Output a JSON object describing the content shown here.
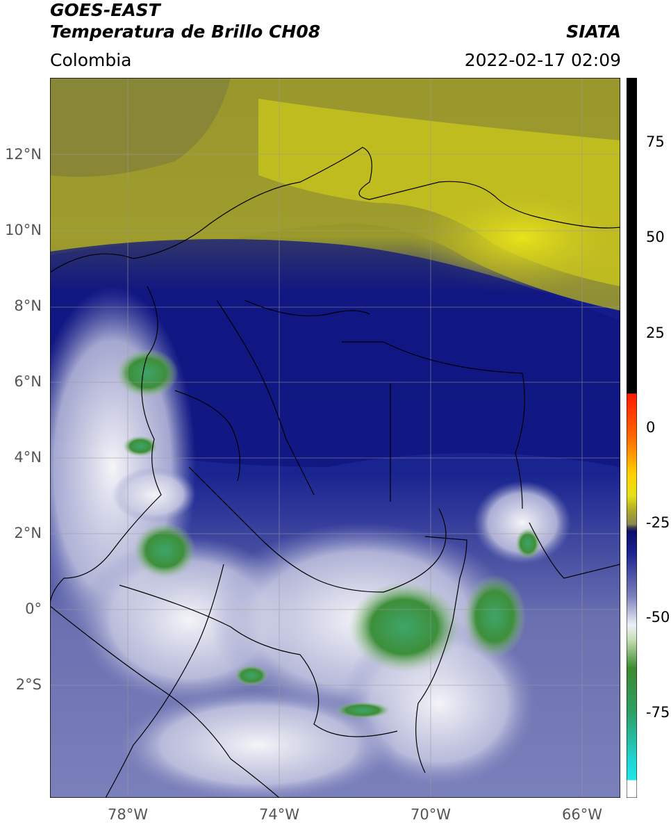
{
  "header": {
    "satellite": "GOES-EAST",
    "product": "Temperatura de Brillo CH08",
    "region": "Colombia",
    "agency": "SIATA",
    "datetime": "2022-02-17 02:09"
  },
  "map": {
    "lat_labels": [
      "12°N",
      "10°N",
      "8°N",
      "6°N",
      "4°N",
      "2°N",
      "0°",
      "2°S"
    ],
    "lon_labels": [
      "78°W",
      "74°W",
      "70°W",
      "66°W"
    ]
  },
  "colorbar": {
    "tick_labels": [
      "75",
      "50",
      "25",
      "0",
      "-25",
      "-50",
      "-75"
    ],
    "colors": {
      "top": "#000000",
      "warm": "#ff2a00",
      "yellow": "#e6e01a",
      "navy": "#141a8a",
      "white": "#f2f2f2",
      "green": "#2f8a2a",
      "cyan": "#21d6d6"
    }
  }
}
